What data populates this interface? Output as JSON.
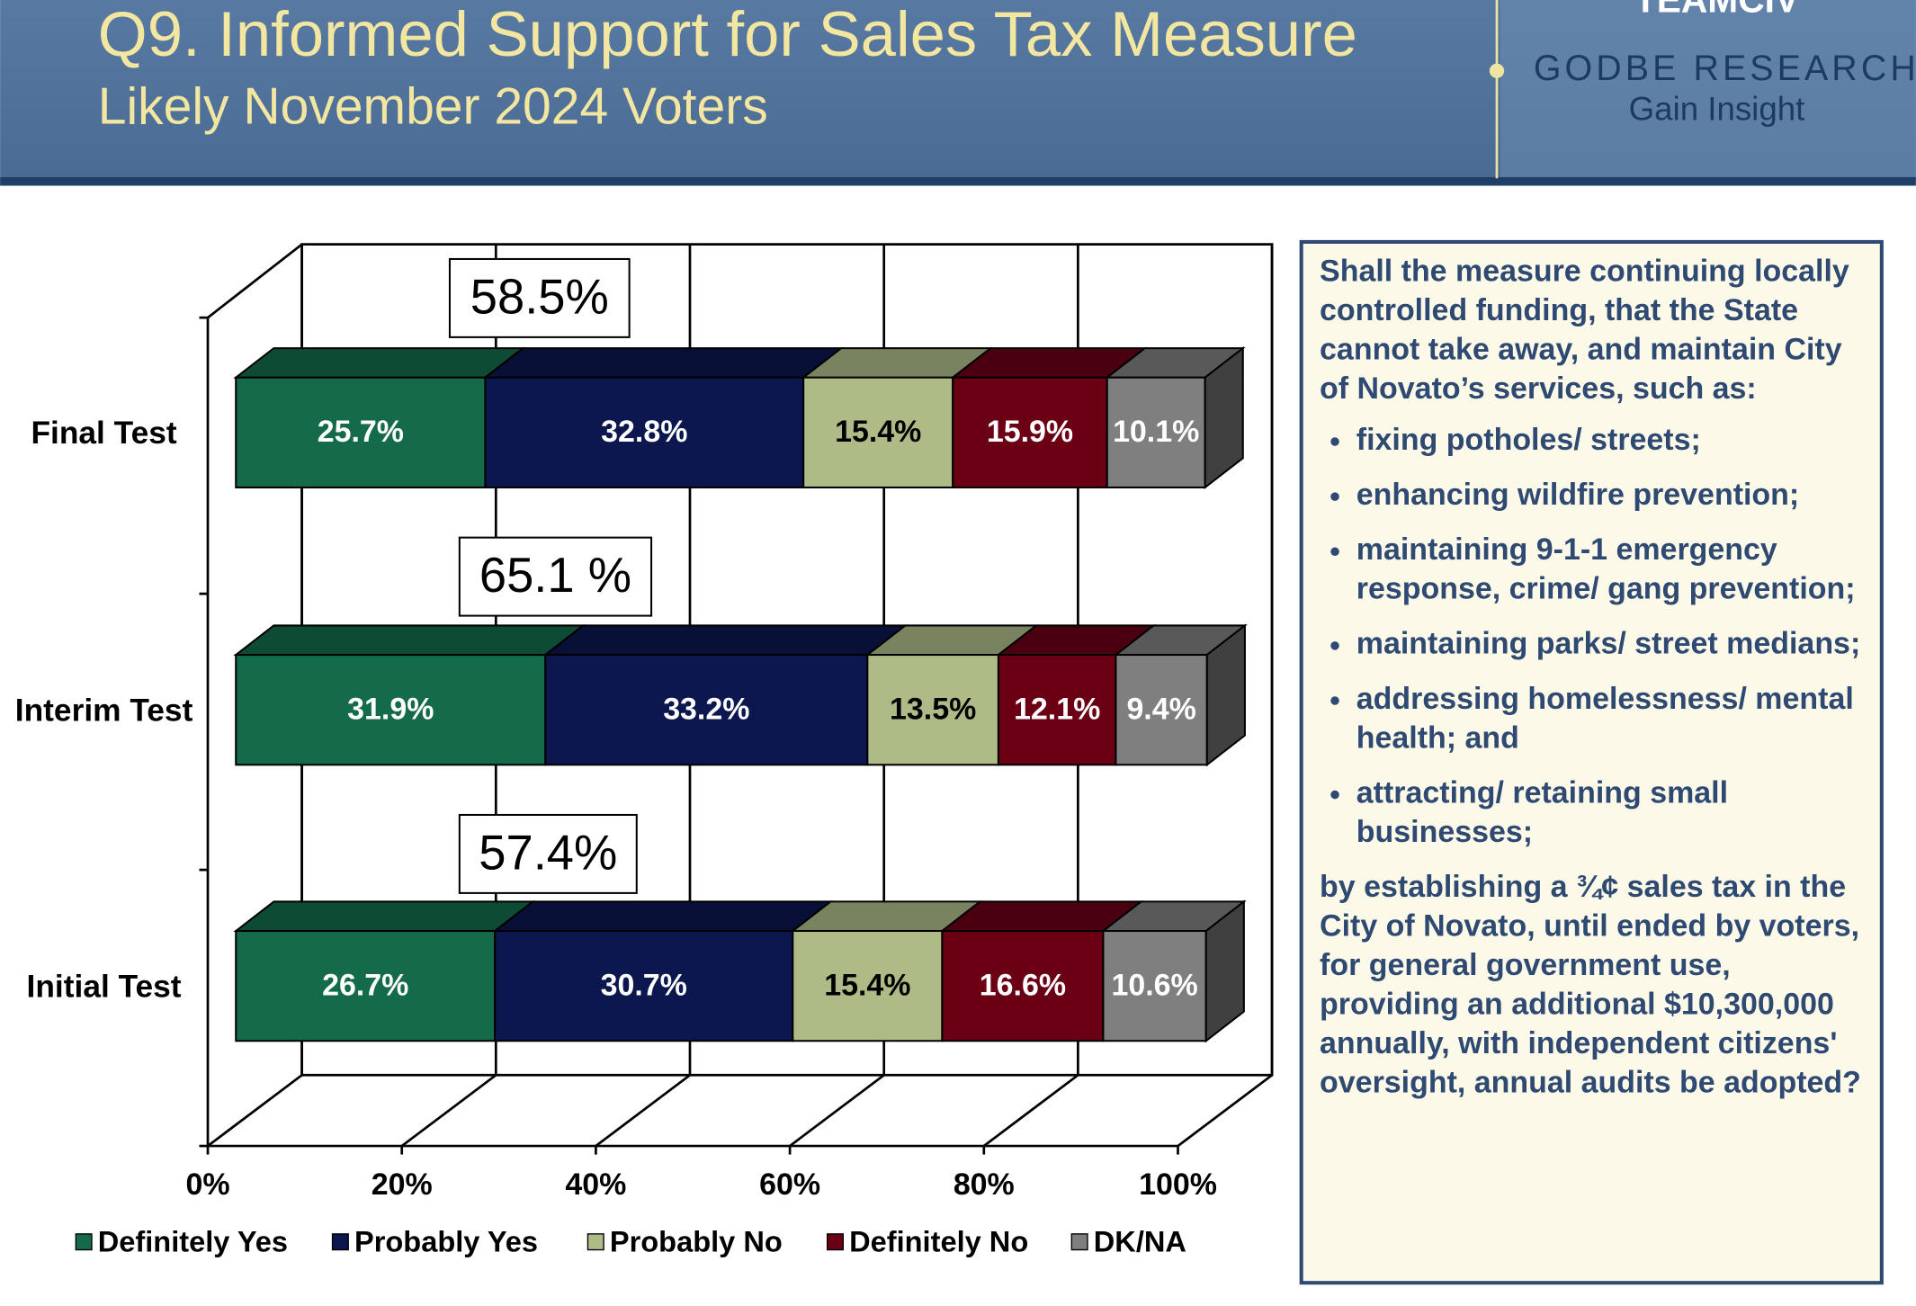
{
  "header": {
    "title": "Q9. Informed Support for Sales Tax Measure",
    "subtitle": "Likely November 2024 Voters",
    "logo_top": "TEAMCIV",
    "logo_name": "GODBE RESEARCH",
    "logo_tagline": "Gain Insight"
  },
  "chart_data": {
    "type": "bar",
    "orientation": "horizontal",
    "stacked": true,
    "categories": [
      "Final Test",
      "Interim Test",
      "Initial Test"
    ],
    "series": [
      {
        "name": "Definitely Yes",
        "color": "#146b4a",
        "values": [
          25.7,
          31.9,
          26.7
        ],
        "value_labels": [
          "25.7%",
          "31.9%",
          "26.7%"
        ]
      },
      {
        "name": "Probably Yes",
        "color": "#0c174f",
        "values": [
          32.8,
          33.2,
          30.7
        ],
        "value_labels": [
          "32.8%",
          "33.2%",
          "30.7%"
        ]
      },
      {
        "name": "Probably No",
        "color": "#afbb87",
        "values": [
          15.4,
          13.5,
          15.4
        ],
        "value_labels": [
          "15.4%",
          "13.5%",
          "15.4%"
        ]
      },
      {
        "name": "Definitely No",
        "color": "#6b0015",
        "values": [
          15.9,
          12.1,
          16.6
        ],
        "value_labels": [
          "15.9%",
          "12.1%",
          "16.6%"
        ]
      },
      {
        "name": "DK/NA",
        "color": "#7f7f7f",
        "values": [
          10.1,
          9.4,
          10.6
        ],
        "value_labels": [
          "10.1%",
          "9.4%",
          "10.6%"
        ]
      }
    ],
    "annotations": [
      "58.5%",
      "65.1 %",
      "57.4%"
    ],
    "xlim": [
      0,
      100
    ],
    "xticks": [
      {
        "value": 0,
        "label": "0%"
      },
      {
        "value": 20,
        "label": "20%"
      },
      {
        "value": 40,
        "label": "40%"
      },
      {
        "value": 60,
        "label": "60%"
      },
      {
        "value": 80,
        "label": "80%"
      },
      {
        "value": 100,
        "label": "100%"
      }
    ],
    "grid": true,
    "legend": "bottom"
  },
  "side_box": {
    "intro": "Shall the measure continuing locally controlled funding, that the State cannot take away, and maintain City of Novato’s services, such as:",
    "bullets": [
      "fixing potholes/ streets;",
      "enhancing wildfire prevention;",
      "maintaining 9-1-1 emergency response, crime/ gang prevention;",
      "maintaining parks/ street medians;",
      "addressing homelessness/ mental health; and",
      "attracting/ retaining small businesses;"
    ],
    "closing": "by establishing a ¾¢ sales tax in the City of Novato, until ended by voters, for general government use, providing an additional $10,300,000 annually, with independent citizens' oversight, annual audits be adopted?"
  }
}
